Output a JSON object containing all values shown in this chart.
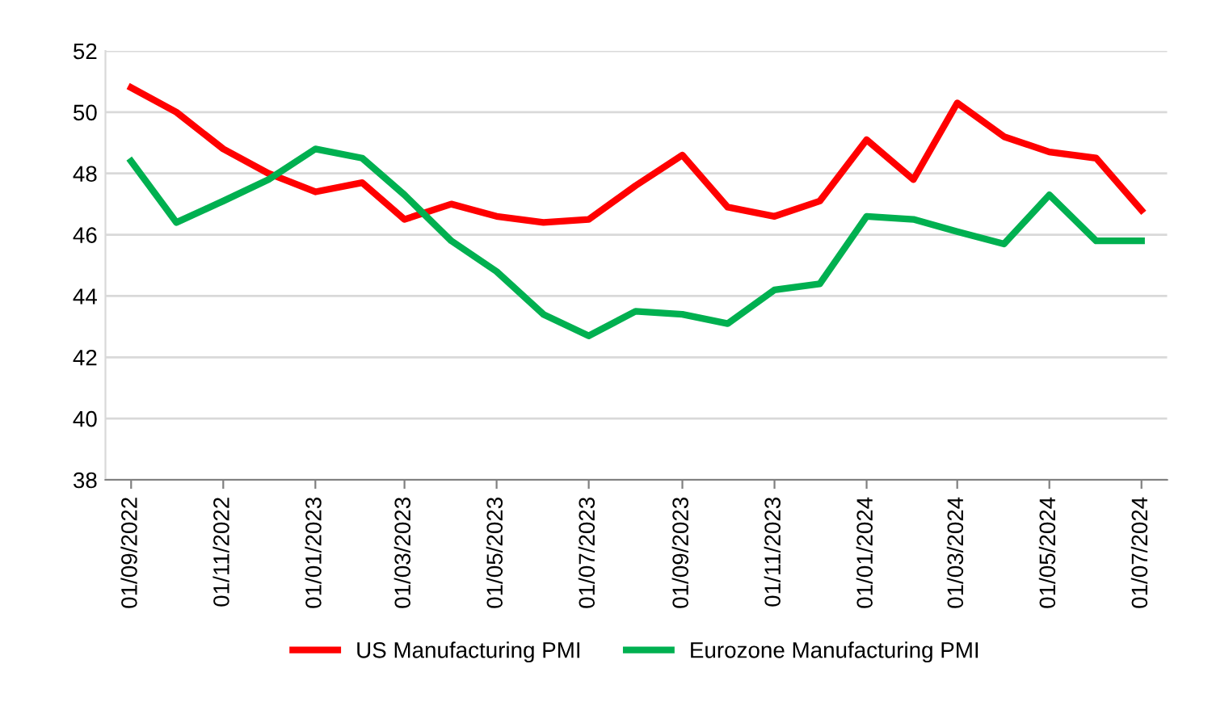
{
  "chart_data": {
    "type": "line",
    "x": [
      "2022-09-01",
      "2022-10-01",
      "2022-11-01",
      "2022-12-01",
      "2023-01-01",
      "2023-02-01",
      "2023-03-01",
      "2023-04-01",
      "2023-05-01",
      "2023-06-01",
      "2023-07-01",
      "2023-08-01",
      "2023-09-01",
      "2023-10-01",
      "2023-11-01",
      "2023-12-01",
      "2024-01-01",
      "2024-02-01",
      "2024-03-01",
      "2024-04-01",
      "2024-05-01",
      "2024-06-01",
      "2024-07-01"
    ],
    "series": [
      {
        "name": "US Manufacturing PMI",
        "color": "#ff0000",
        "values": [
          50.8,
          50.0,
          48.8,
          48.0,
          47.4,
          47.7,
          46.5,
          47.0,
          46.6,
          46.4,
          46.5,
          47.6,
          48.6,
          46.9,
          46.6,
          47.1,
          49.1,
          47.8,
          50.3,
          49.2,
          48.7,
          48.5,
          46.8
        ]
      },
      {
        "name": "Eurozone Manufacturing PMI",
        "color": "#00b050",
        "values": [
          48.4,
          46.4,
          47.1,
          47.8,
          48.8,
          48.5,
          47.3,
          45.8,
          44.8,
          43.4,
          42.7,
          43.5,
          43.4,
          43.1,
          44.2,
          44.4,
          46.6,
          46.5,
          46.1,
          45.7,
          47.3,
          45.8,
          45.8
        ]
      }
    ],
    "xlim": [
      "2022-08-15",
      "2024-07-18"
    ],
    "xticks": [
      {
        "value": "2022-09-01",
        "label": "01/09/2022"
      },
      {
        "value": "2022-11-01",
        "label": "01/11/2022"
      },
      {
        "value": "2023-01-01",
        "label": "01/01/2023"
      },
      {
        "value": "2023-03-01",
        "label": "01/03/2023"
      },
      {
        "value": "2023-05-01",
        "label": "01/05/2023"
      },
      {
        "value": "2023-07-01",
        "label": "01/07/2023"
      },
      {
        "value": "2023-09-01",
        "label": "01/09/2023"
      },
      {
        "value": "2023-11-01",
        "label": "01/11/2023"
      },
      {
        "value": "2024-01-01",
        "label": "01/01/2024"
      },
      {
        "value": "2024-03-01",
        "label": "01/03/2024"
      },
      {
        "value": "2024-05-01",
        "label": "01/05/2024"
      },
      {
        "value": "2024-07-01",
        "label": "01/07/2024"
      }
    ],
    "ylim": [
      38,
      52
    ],
    "yticks": [
      38,
      40,
      42,
      44,
      46,
      48,
      50,
      52
    ],
    "grid": "y",
    "legend": "bottom",
    "marker": "none",
    "line_style": "solid"
  }
}
